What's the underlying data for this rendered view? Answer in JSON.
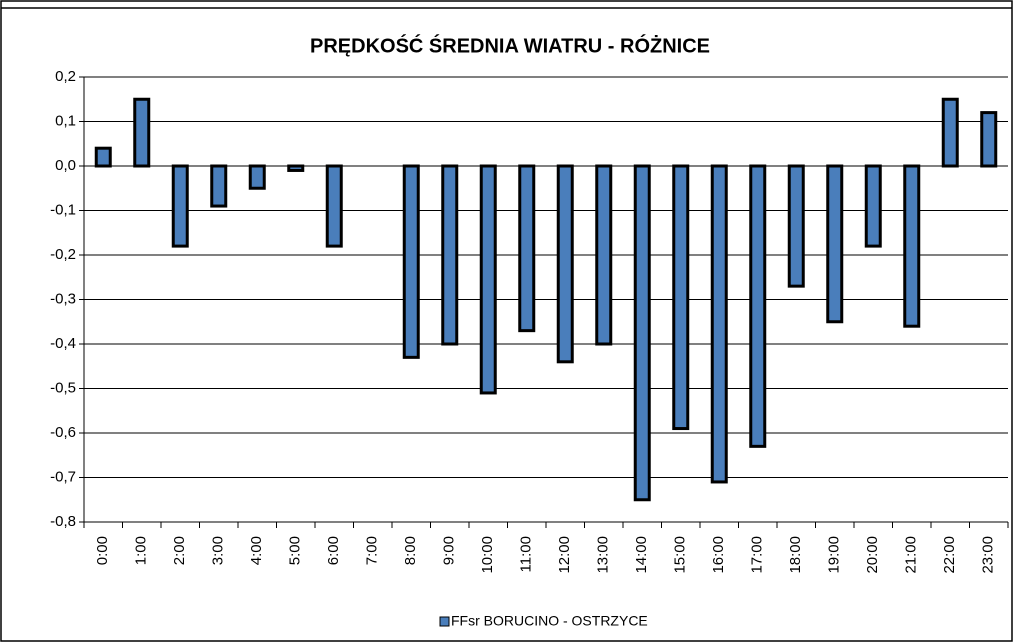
{
  "chart_data": {
    "type": "bar",
    "title": "PRĘDKOŚĆ ŚREDNIA WIATRU -  RÓŻNICE",
    "categories": [
      "0:00",
      "1:00",
      "2:00",
      "3:00",
      "4:00",
      "5:00",
      "6:00",
      "7:00",
      "8:00",
      "9:00",
      "10:00",
      "11:00",
      "12:00",
      "13:00",
      "14:00",
      "15:00",
      "16:00",
      "17:00",
      "18:00",
      "19:00",
      "20:00",
      "21:00",
      "22:00",
      "23:00"
    ],
    "series": [
      {
        "name": "FFsr BORUCINO  - OSTRZYCE",
        "color": "#4a7ebb",
        "values": [
          0.04,
          0.15,
          -0.18,
          -0.09,
          -0.05,
          -0.01,
          -0.18,
          0,
          -0.43,
          -0.4,
          -0.51,
          -0.37,
          -0.44,
          -0.4,
          -0.75,
          -0.59,
          -0.71,
          -0.63,
          -0.27,
          -0.35,
          -0.18,
          -0.36,
          0.15,
          0.12
        ]
      }
    ],
    "ylim": [
      -0.8,
      0.2
    ],
    "yticks": [
      {
        "value": -0.8,
        "label": "-0,8"
      },
      {
        "value": -0.7,
        "label": "-0,7"
      },
      {
        "value": -0.6,
        "label": "-0,6"
      },
      {
        "value": -0.5,
        "label": "-0,5"
      },
      {
        "value": -0.4,
        "label": "-0,4"
      },
      {
        "value": -0.3,
        "label": "-0,3"
      },
      {
        "value": -0.2,
        "label": "-0,2"
      },
      {
        "value": -0.1,
        "label": "-0,1"
      },
      {
        "value": 0,
        "label": "0,0"
      },
      {
        "value": 0.1,
        "label": "0,1"
      },
      {
        "value": 0.2,
        "label": "0,2"
      }
    ],
    "grid": true,
    "legend": "bottom"
  }
}
